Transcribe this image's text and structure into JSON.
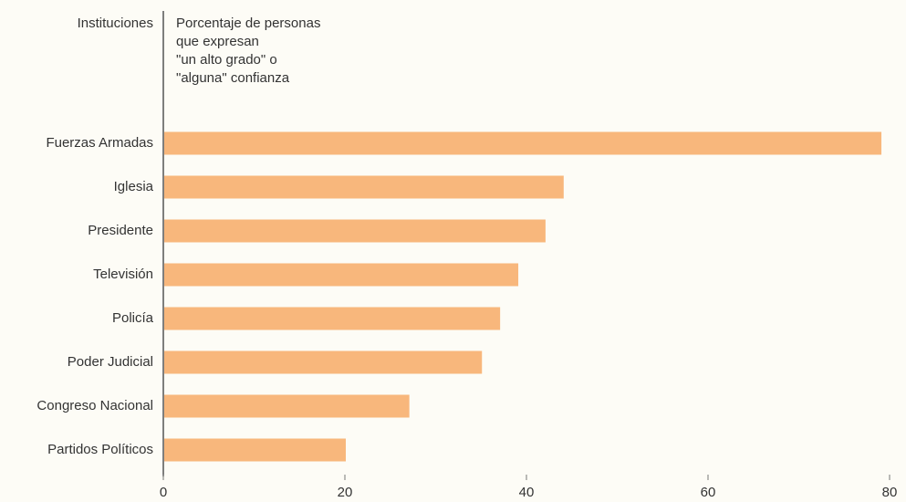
{
  "chart_data": {
    "type": "hbar",
    "category_axis_label": "Instituciones",
    "value_axis_label": [
      "Porcentaje de personas",
      "que expresan",
      "\"un alto grado\" o",
      "\"alguna\" confianza"
    ],
    "categories": [
      "Fuerzas Armadas",
      "Iglesia",
      "Presidente",
      "Televisión",
      "Policía",
      "Poder Judicial",
      "Congreso Nacional",
      "Partidos Políticos"
    ],
    "values": [
      79,
      44,
      42,
      39,
      37,
      35,
      27,
      20
    ],
    "color": "#f8b77c",
    "xlim": [
      0,
      80
    ],
    "xticks": [
      0,
      20,
      40,
      60,
      80
    ],
    "grid": false
  }
}
